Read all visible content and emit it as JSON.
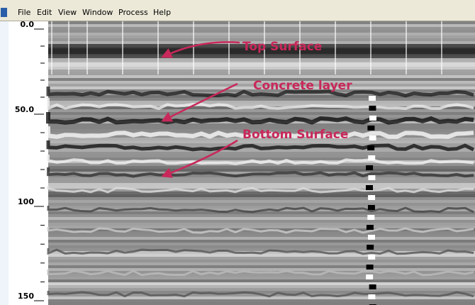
{
  "menu": {
    "items": [
      "File",
      "Edit",
      "View",
      "Window",
      "Process",
      "Help"
    ]
  },
  "depth_axis": {
    "labels": [
      "0.0",
      "50.0",
      "100",
      "150"
    ]
  },
  "annotations": [
    "Top Surface",
    "Concrete layer",
    "Bottom Surface"
  ]
}
